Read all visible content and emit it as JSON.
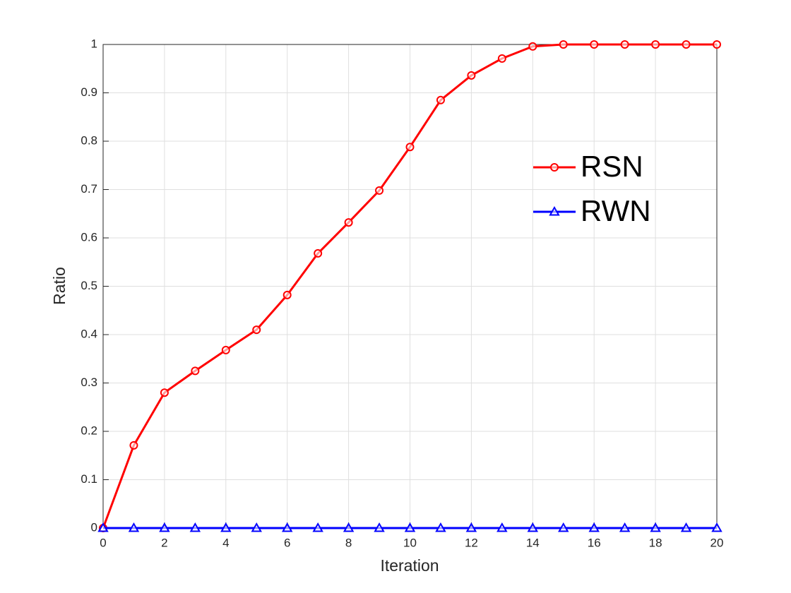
{
  "chart_data": {
    "type": "line",
    "x_label": "Iteration",
    "y_label": "Ratio",
    "x": [
      0,
      1,
      2,
      3,
      4,
      5,
      6,
      7,
      8,
      9,
      10,
      11,
      12,
      13,
      14,
      15,
      16,
      17,
      18,
      19,
      20
    ],
    "series": [
      {
        "name": "RSN",
        "color": "#ff0000",
        "marker": "circle",
        "values": [
          0,
          0.171,
          0.28,
          0.325,
          0.368,
          0.41,
          0.482,
          0.568,
          0.632,
          0.698,
          0.788,
          0.885,
          0.936,
          0.971,
          0.996,
          1,
          1,
          1,
          1,
          1,
          1
        ]
      },
      {
        "name": "RWN",
        "color": "#0000ff",
        "marker": "triangle",
        "values": [
          0,
          0,
          0,
          0,
          0,
          0,
          0,
          0,
          0,
          0,
          0,
          0,
          0,
          0,
          0,
          0,
          0,
          0,
          0,
          0,
          0
        ]
      }
    ],
    "xlim": [
      0,
      20
    ],
    "xticks": [
      0,
      2,
      4,
      6,
      8,
      10,
      12,
      14,
      16,
      18,
      20
    ],
    "ylim": [
      0,
      1
    ],
    "yticks": [
      0,
      0.1,
      0.2,
      0.3,
      0.4,
      0.5,
      0.6,
      0.7,
      0.8,
      0.9,
      1
    ],
    "grid": true,
    "legend": "east"
  }
}
